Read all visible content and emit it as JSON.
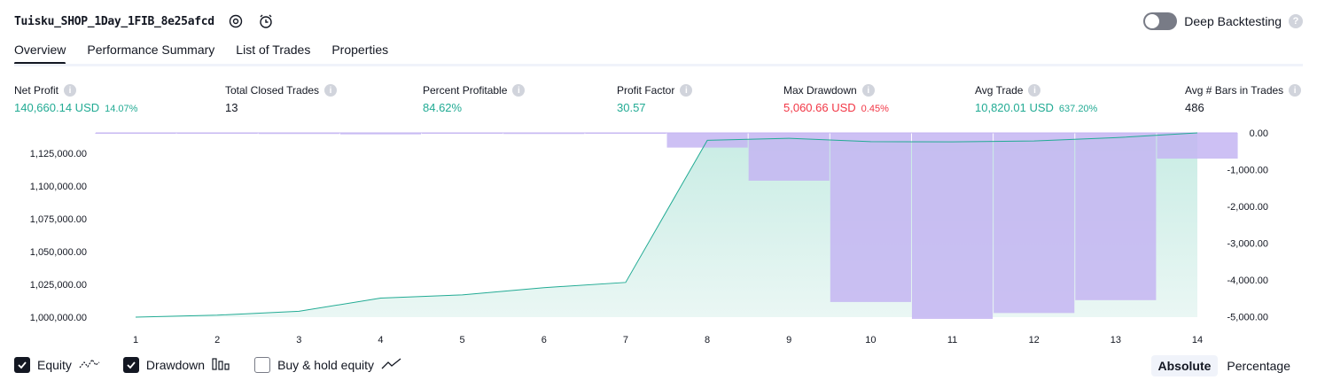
{
  "header": {
    "title": "Tuisku_SHOP_1Day_1FIB_8e25afcd",
    "settings_icon": "gear-icon",
    "alert_icon": "alarm-clock-add-icon"
  },
  "deep_backtesting": {
    "label": "Deep Backtesting",
    "enabled": false
  },
  "tabs": [
    {
      "label": "Overview",
      "active": true
    },
    {
      "label": "Performance Summary",
      "active": false
    },
    {
      "label": "List of Trades",
      "active": false
    },
    {
      "label": "Properties",
      "active": false
    }
  ],
  "metrics": {
    "net_profit": {
      "label": "Net Profit",
      "value": "140,660.14 USD",
      "pct": "14.07%"
    },
    "total_closed_trades": {
      "label": "Total Closed Trades",
      "value": "13"
    },
    "percent_profitable": {
      "label": "Percent Profitable",
      "value": "84.62%"
    },
    "profit_factor": {
      "label": "Profit Factor",
      "value": "30.57"
    },
    "max_drawdown": {
      "label": "Max Drawdown",
      "value": "5,060.66 USD",
      "pct": "0.45%"
    },
    "avg_trade": {
      "label": "Avg Trade",
      "value": "10,820.01 USD",
      "pct": "637.20%"
    },
    "avg_bars": {
      "label": "Avg # Bars in Trades",
      "value": "486"
    }
  },
  "colors": {
    "positive": "#22ab94",
    "negative": "#f23645",
    "equity_fill": "#c8ece4",
    "equity_line": "#22ab94",
    "drawdown": "#c4b5f2"
  },
  "chart_data": {
    "type": "line",
    "x": [
      1,
      2,
      3,
      4,
      5,
      6,
      7,
      8,
      9,
      10,
      11,
      12,
      13,
      14
    ],
    "x_ticks": [
      "1",
      "2",
      "3",
      "4",
      "5",
      "6",
      "7",
      "8",
      "9",
      "10",
      "11",
      "12",
      "13",
      "14"
    ],
    "series": [
      {
        "name": "Equity",
        "axis": "left",
        "type": "area",
        "values": [
          1000000,
          1001500,
          1004500,
          1014500,
          1017000,
          1022500,
          1026500,
          1135000,
          1136500,
          1134000,
          1133800,
          1134500,
          1137000,
          1140660
        ]
      },
      {
        "name": "Drawdown",
        "axis": "right",
        "type": "bar",
        "values": [
          -5,
          -10,
          -30,
          -40,
          -10,
          -30,
          -20,
          -400,
          -1300,
          -4600,
          -5060,
          -4900,
          -4550,
          -700
        ]
      }
    ],
    "left_axis": {
      "ticks": [
        "1,000,000.00",
        "1,025,000.00",
        "1,050,000.00",
        "1,075,000.00",
        "1,100,000.00",
        "1,125,000.00"
      ],
      "ylim": [
        1000000,
        1140660
      ]
    },
    "right_axis": {
      "ticks": [
        "0.00",
        "-1,000.00",
        "-2,000.00",
        "-3,000.00",
        "-4,000.00",
        "-5,000.00"
      ],
      "ylim": [
        -5060,
        0
      ]
    },
    "grid": false
  },
  "legend": [
    {
      "label": "Equity",
      "checked": true,
      "icon": "equity-line-icon"
    },
    {
      "label": "Drawdown",
      "checked": true,
      "icon": "drawdown-bars-icon"
    },
    {
      "label": "Buy & hold equity",
      "checked": false,
      "icon": "buy-hold-line-icon"
    }
  ],
  "modes": [
    {
      "label": "Absolute",
      "active": true
    },
    {
      "label": "Percentage",
      "active": false
    }
  ]
}
